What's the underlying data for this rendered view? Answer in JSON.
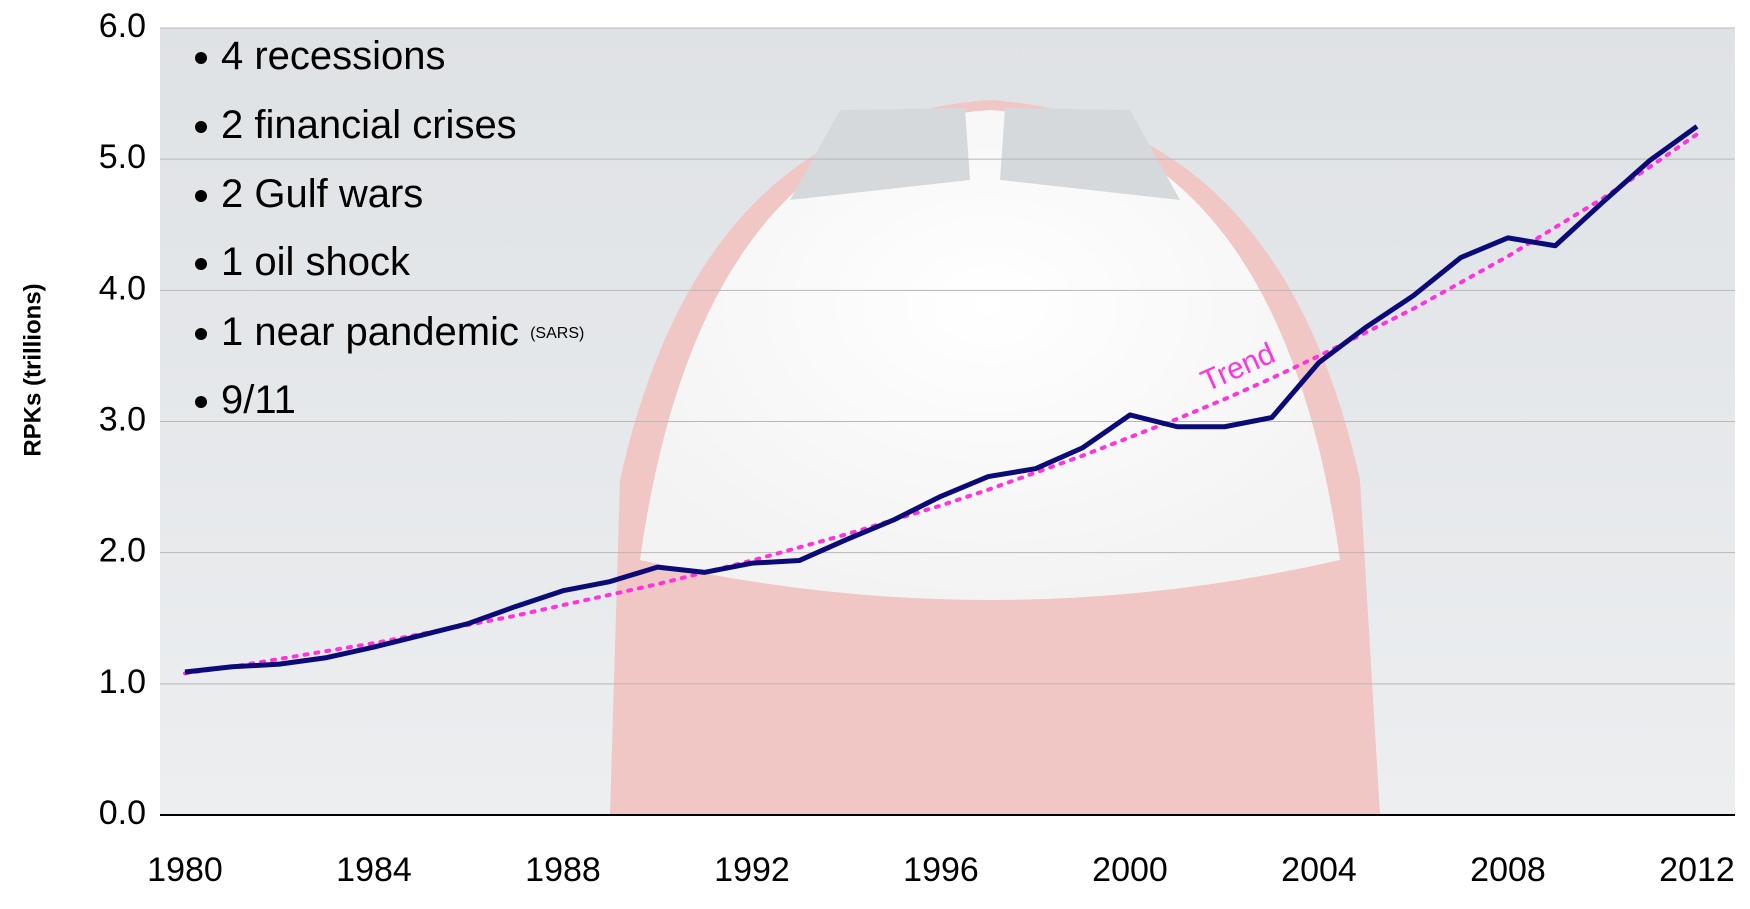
{
  "chart_data": {
    "type": "line",
    "y_label": "RPKs (trillions)",
    "x": [
      1980,
      1981,
      1982,
      1983,
      1984,
      1985,
      1986,
      1987,
      1988,
      1989,
      1990,
      1991,
      1992,
      1993,
      1994,
      1995,
      1996,
      1997,
      1998,
      1999,
      2000,
      2001,
      2002,
      2003,
      2004,
      2005,
      2006,
      2007,
      2008,
      2009,
      2010,
      2011,
      2012
    ],
    "series": [
      {
        "name": "RPKs",
        "color": "#0b0b78",
        "style": "solid",
        "values": [
          1.09,
          1.13,
          1.15,
          1.2,
          1.28,
          1.37,
          1.46,
          1.59,
          1.71,
          1.78,
          1.89,
          1.85,
          1.92,
          1.94,
          2.1,
          2.25,
          2.43,
          2.58,
          2.64,
          2.8,
          3.05,
          2.96,
          2.96,
          3.03,
          3.45,
          3.72,
          3.96,
          4.25,
          4.4,
          4.34,
          4.67,
          4.99,
          5.25
        ]
      },
      {
        "name": "Trend",
        "color": "#ff33dd",
        "style": "dotted",
        "values": [
          1.08,
          1.13,
          1.19,
          1.25,
          1.31,
          1.38,
          1.45,
          1.52,
          1.6,
          1.68,
          1.76,
          1.85,
          1.94,
          2.04,
          2.14,
          2.25,
          2.36,
          2.48,
          2.61,
          2.74,
          2.88,
          3.02,
          3.17,
          3.33,
          3.5,
          3.68,
          3.86,
          4.06,
          4.26,
          4.48,
          4.7,
          4.94,
          5.19
        ]
      }
    ],
    "xlim": [
      1980,
      2012
    ],
    "xticks": [
      1980,
      1984,
      1988,
      1992,
      1996,
      2000,
      2004,
      2008,
      2012
    ],
    "ylim": [
      0,
      6
    ],
    "yticks": [
      {
        "value": 0,
        "label": "0.0"
      },
      {
        "value": 1,
        "label": "1.0"
      },
      {
        "value": 2,
        "label": "2.0"
      },
      {
        "value": 3,
        "label": "3.0"
      },
      {
        "value": 4,
        "label": "4.0"
      },
      {
        "value": 5,
        "label": "5.0"
      },
      {
        "value": 6,
        "label": "6.0"
      }
    ],
    "grid": true,
    "annotations": [
      {
        "text": "4 recessions"
      },
      {
        "text": "2 financial crises"
      },
      {
        "text": "2 Gulf wars"
      },
      {
        "text": "1 oil shock"
      },
      {
        "text": "1 near pandemic",
        "note": "(SARS)"
      },
      {
        "text": "9/11"
      }
    ]
  }
}
